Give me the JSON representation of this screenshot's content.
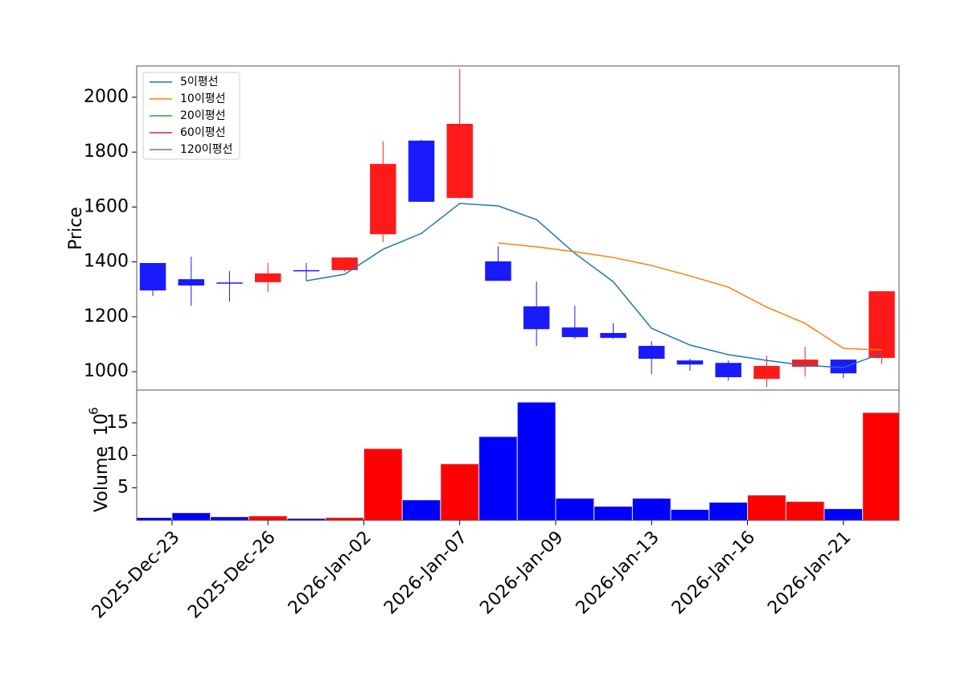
{
  "chart_data": {
    "type": "candlestick",
    "ylabel": "Price",
    "volume_label": "Volume",
    "volume_offset": {
      "base": "10",
      "exponent": "6"
    },
    "xlim": [
      -0.42,
      19.45
    ],
    "xticks": [
      {
        "value": 0.5,
        "label": "2025-Dec-23"
      },
      {
        "value": 3,
        "label": "2025-Dec-26"
      },
      {
        "value": 5.5,
        "label": "2026-Jan-02"
      },
      {
        "value": 8,
        "label": "2026-Jan-07"
      },
      {
        "value": 10.5,
        "label": "2026-Jan-09"
      },
      {
        "value": 13,
        "label": "2026-Jan-13"
      },
      {
        "value": 15.5,
        "label": "2026-Jan-16"
      },
      {
        "value": 18,
        "label": "2026-Jan-21"
      }
    ],
    "ylim": [
      933,
      2114
    ],
    "yticks": [
      1000,
      1200,
      1400,
      1600,
      1800,
      2000
    ],
    "volume_ylim": [
      0,
      20.06
    ],
    "volume_yticks": [
      5,
      10,
      15
    ],
    "up_color": "#ff1a1a",
    "down_color": "#1a1aff",
    "volume_up_color": "#ff0000",
    "volume_down_color": "#0000ff",
    "open": [
      1396,
      1337,
      1325,
      1326,
      1370,
      1370,
      1501,
      1842,
      1633,
      1402,
      1238,
      1161,
      1141,
      1094,
      1041,
      1032,
      974,
      1018,
      1044,
      1050
    ],
    "high": [
      1396,
      1419,
      1367,
      1396,
      1396,
      1416,
      1839,
      1845,
      2103,
      1457,
      1328,
      1240,
      1176,
      1111,
      1047,
      1041,
      1059,
      1091,
      1044,
      1293
    ],
    "low": [
      1276,
      1240,
      1255,
      1290,
      1331,
      1365,
      1472,
      1619,
      1630,
      1331,
      1094,
      1120,
      1120,
      991,
      1003,
      968,
      944,
      982,
      977,
      1029
    ],
    "close": [
      1296,
      1314,
      1322,
      1358,
      1368,
      1416,
      1757,
      1619,
      1903,
      1331,
      1155,
      1126,
      1123,
      1047,
      1026,
      980,
      1021,
      1044,
      994,
      1293
    ],
    "volume": [
      0.43,
      1.17,
      0.55,
      0.68,
      0.3,
      0.43,
      11.05,
      3.15,
      8.7,
      12.9,
      18.2,
      3.4,
      2.16,
      3.4,
      1.67,
      2.78,
      3.89,
      2.9,
      1.79,
      16.6
    ],
    "series": [
      {
        "name": "5이평선",
        "color": "#1f77b4",
        "values": [
          null,
          null,
          null,
          null,
          1331,
          1355,
          1446,
          1504,
          1613,
          1604,
          1554,
          1431,
          1328,
          1158,
          1097,
          1062,
          1041,
          1023,
          1015,
          1067
        ]
      },
      {
        "name": "10이평선",
        "color": "#ff7f0e",
        "values": [
          null,
          null,
          null,
          null,
          null,
          null,
          null,
          null,
          null,
          1469,
          1455,
          1437,
          1416,
          1387,
          1349,
          1308,
          1235,
          1176,
          1085,
          1079
        ]
      },
      {
        "name": "20이평선",
        "color": "#2ca02c",
        "values": [
          null,
          null,
          null,
          null,
          null,
          null,
          null,
          null,
          null,
          null,
          null,
          null,
          null,
          null,
          null,
          null,
          null,
          null,
          null,
          null
        ]
      },
      {
        "name": "60이평선",
        "color": "#d62728",
        "values": [
          null,
          null,
          null,
          null,
          null,
          null,
          null,
          null,
          null,
          null,
          null,
          null,
          null,
          null,
          null,
          null,
          null,
          null,
          null,
          null
        ]
      },
      {
        "name": "120이평선",
        "color": "#9467bd",
        "values": [
          null,
          null,
          null,
          null,
          null,
          null,
          null,
          null,
          null,
          null,
          null,
          null,
          null,
          null,
          null,
          null,
          null,
          null,
          null,
          null
        ]
      }
    ]
  }
}
